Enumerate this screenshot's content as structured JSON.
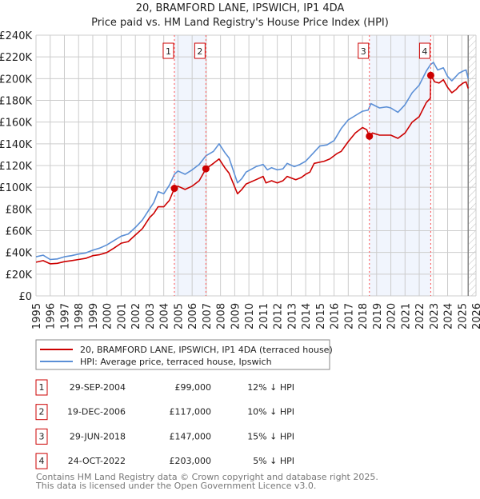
{
  "chart_data": {
    "type": "line",
    "title": "20, BRAMFORD LANE, IPSWICH, IP1 4DA",
    "subtitle": "Price paid vs. HM Land Registry's House Price Index (HPI)",
    "xlim": [
      1995,
      2026
    ],
    "ylim": [
      0,
      240000
    ],
    "grid": true,
    "x_ticks": [
      "1995",
      "1996",
      "1997",
      "1998",
      "1999",
      "2000",
      "2001",
      "2002",
      "2003",
      "2004",
      "2005",
      "2006",
      "2007",
      "2008",
      "2009",
      "2010",
      "2011",
      "2012",
      "2013",
      "2014",
      "2015",
      "2016",
      "2017",
      "2018",
      "2019",
      "2020",
      "2021",
      "2022",
      "2023",
      "2024",
      "2025",
      "2026"
    ],
    "y_ticks": [
      {
        "value": 0,
        "label": "£0"
      },
      {
        "value": 20000,
        "label": "£20K"
      },
      {
        "value": 40000,
        "label": "£40K"
      },
      {
        "value": 60000,
        "label": "£60K"
      },
      {
        "value": 80000,
        "label": "£80K"
      },
      {
        "value": 100000,
        "label": "£100K"
      },
      {
        "value": 120000,
        "label": "£120K"
      },
      {
        "value": 140000,
        "label": "£140K"
      },
      {
        "value": 160000,
        "label": "£160K"
      },
      {
        "value": 180000,
        "label": "£180K"
      },
      {
        "value": 200000,
        "label": "£200K"
      },
      {
        "value": 220000,
        "label": "£220K"
      },
      {
        "value": 240000,
        "label": "£240K"
      }
    ],
    "forecast_hatch_start": 2025.45,
    "shaded_ranges": [
      [
        2004.75,
        2006.97
      ],
      [
        2018.49,
        2022.81
      ]
    ],
    "series": [
      {
        "name": "20, BRAMFORD LANE, IPSWICH, IP1 4DA (terraced house)",
        "color": "#cc0000",
        "points": [
          [
            1995,
            31000
          ],
          [
            1995.5,
            32500
          ],
          [
            1996,
            29500
          ],
          [
            1996.5,
            30000
          ],
          [
            1997,
            31500
          ],
          [
            1997.5,
            32500
          ],
          [
            1998,
            33500
          ],
          [
            1998.5,
            34500
          ],
          [
            1999,
            37000
          ],
          [
            1999.5,
            38000
          ],
          [
            2000,
            40000
          ],
          [
            2000.5,
            44000
          ],
          [
            2001,
            48500
          ],
          [
            2001.5,
            50000
          ],
          [
            2002,
            56000
          ],
          [
            2002.5,
            62000
          ],
          [
            2003,
            72000
          ],
          [
            2003.3,
            76000
          ],
          [
            2003.6,
            82000
          ],
          [
            2004,
            82000
          ],
          [
            2004.4,
            88000
          ],
          [
            2004.75,
            99000
          ],
          [
            2005,
            101000
          ],
          [
            2005.5,
            98000
          ],
          [
            2006,
            101000
          ],
          [
            2006.5,
            106000
          ],
          [
            2006.97,
            117000
          ],
          [
            2007.5,
            122000
          ],
          [
            2007.9,
            126000
          ],
          [
            2008.3,
            118000
          ],
          [
            2008.6,
            113000
          ],
          [
            2009.2,
            94000
          ],
          [
            2009.5,
            98000
          ],
          [
            2009.8,
            103000
          ],
          [
            2010.5,
            107000
          ],
          [
            2011,
            110000
          ],
          [
            2011.2,
            104000
          ],
          [
            2011.6,
            106000
          ],
          [
            2012,
            104000
          ],
          [
            2012.4,
            106000
          ],
          [
            2012.7,
            110000
          ],
          [
            2013.3,
            107000
          ],
          [
            2013.7,
            109000
          ],
          [
            2014,
            112000
          ],
          [
            2014.3,
            114000
          ],
          [
            2014.6,
            122000
          ],
          [
            2015.3,
            124000
          ],
          [
            2015.7,
            126000
          ],
          [
            2016.2,
            131000
          ],
          [
            2016.5,
            133000
          ],
          [
            2017,
            142000
          ],
          [
            2017.5,
            150000
          ],
          [
            2018,
            155000
          ],
          [
            2018.3,
            153000
          ],
          [
            2018.49,
            147000
          ],
          [
            2018.7,
            150000
          ],
          [
            2019.2,
            148000
          ],
          [
            2019.7,
            148000
          ],
          [
            2020,
            148000
          ],
          [
            2020.5,
            145000
          ],
          [
            2021,
            150000
          ],
          [
            2021.5,
            160000
          ],
          [
            2021.8,
            163000
          ],
          [
            2022,
            165000
          ],
          [
            2022.5,
            178000
          ],
          [
            2022.79,
            182000
          ],
          [
            2022.81,
            203000
          ],
          [
            2023.1,
            197000
          ],
          [
            2023.4,
            196000
          ],
          [
            2023.7,
            199000
          ],
          [
            2024,
            192000
          ],
          [
            2024.3,
            187000
          ],
          [
            2024.6,
            190000
          ],
          [
            2024.8,
            193000
          ],
          [
            2025.1,
            196000
          ],
          [
            2025.3,
            197000
          ],
          [
            2025.45,
            191000
          ]
        ]
      },
      {
        "name": "HPI: Average price, terraced house, Ipswich",
        "color": "#5b8fd6",
        "points": [
          [
            1995,
            36000
          ],
          [
            1995.5,
            37500
          ],
          [
            1996,
            33500
          ],
          [
            1996.5,
            34000
          ],
          [
            1997,
            36000
          ],
          [
            1997.5,
            37000
          ],
          [
            1998,
            38500
          ],
          [
            1998.5,
            39500
          ],
          [
            1999,
            42000
          ],
          [
            1999.5,
            44000
          ],
          [
            2000,
            47000
          ],
          [
            2000.5,
            51000
          ],
          [
            2001,
            55000
          ],
          [
            2001.5,
            57000
          ],
          [
            2002,
            63000
          ],
          [
            2002.5,
            70000
          ],
          [
            2003,
            80000
          ],
          [
            2003.3,
            86000
          ],
          [
            2003.6,
            96000
          ],
          [
            2004,
            94000
          ],
          [
            2004.4,
            102000
          ],
          [
            2004.75,
            112000
          ],
          [
            2005,
            115000
          ],
          [
            2005.5,
            112000
          ],
          [
            2006,
            116000
          ],
          [
            2006.5,
            121000
          ],
          [
            2006.97,
            129000
          ],
          [
            2007.5,
            133000
          ],
          [
            2007.9,
            140000
          ],
          [
            2008.3,
            132000
          ],
          [
            2008.6,
            127000
          ],
          [
            2009.2,
            104000
          ],
          [
            2009.5,
            108000
          ],
          [
            2009.8,
            114000
          ],
          [
            2010.5,
            119000
          ],
          [
            2011,
            121000
          ],
          [
            2011.3,
            116000
          ],
          [
            2011.6,
            118000
          ],
          [
            2012,
            116000
          ],
          [
            2012.4,
            117000
          ],
          [
            2012.7,
            122000
          ],
          [
            2013.2,
            119000
          ],
          [
            2013.6,
            121000
          ],
          [
            2014,
            124000
          ],
          [
            2014.5,
            131000
          ],
          [
            2015,
            138000
          ],
          [
            2015.5,
            139000
          ],
          [
            2016,
            143000
          ],
          [
            2016.5,
            154000
          ],
          [
            2017,
            162000
          ],
          [
            2017.5,
            166000
          ],
          [
            2018,
            170000
          ],
          [
            2018.4,
            171000
          ],
          [
            2018.6,
            177000
          ],
          [
            2019.2,
            173000
          ],
          [
            2019.7,
            174000
          ],
          [
            2020,
            173000
          ],
          [
            2020.5,
            169000
          ],
          [
            2021,
            176000
          ],
          [
            2021.5,
            187000
          ],
          [
            2022,
            194000
          ],
          [
            2022.5,
            207000
          ],
          [
            2022.8,
            213000
          ],
          [
            2023,
            215000
          ],
          [
            2023.3,
            208000
          ],
          [
            2023.7,
            210000
          ],
          [
            2024,
            202000
          ],
          [
            2024.3,
            198000
          ],
          [
            2024.8,
            205000
          ],
          [
            2025.1,
            207000
          ],
          [
            2025.3,
            208000
          ],
          [
            2025.45,
            200000
          ]
        ]
      }
    ],
    "sales": [
      {
        "id": "1",
        "x": 2004.75,
        "price": 99000
      },
      {
        "id": "2",
        "x": 2006.97,
        "price": 117000
      },
      {
        "id": "3",
        "x": 2018.49,
        "price": 147000
      },
      {
        "id": "4",
        "x": 2022.81,
        "price": 203000
      }
    ]
  },
  "legend": {
    "items": [
      {
        "label": "20, BRAMFORD LANE, IPSWICH, IP1 4DA (terraced house)",
        "color": "#cc0000"
      },
      {
        "label": "HPI: Average price, terraced house, Ipswich",
        "color": "#5b8fd6"
      }
    ]
  },
  "table": [
    {
      "id": "1",
      "date": "29-SEP-2004",
      "price": "£99,000",
      "hpi": "12% ↓ HPI"
    },
    {
      "id": "2",
      "date": "19-DEC-2006",
      "price": "£117,000",
      "hpi": "10% ↓ HPI"
    },
    {
      "id": "3",
      "date": "29-JUN-2018",
      "price": "£147,000",
      "hpi": "15% ↓ HPI"
    },
    {
      "id": "4",
      "date": "24-OCT-2022",
      "price": "£203,000",
      "hpi": "5% ↓ HPI"
    }
  ],
  "footer": {
    "line1": "Contains HM Land Registry data © Crown copyright and database right 2025.",
    "line2": "This data is licensed under the Open Government Licence v3.0."
  }
}
